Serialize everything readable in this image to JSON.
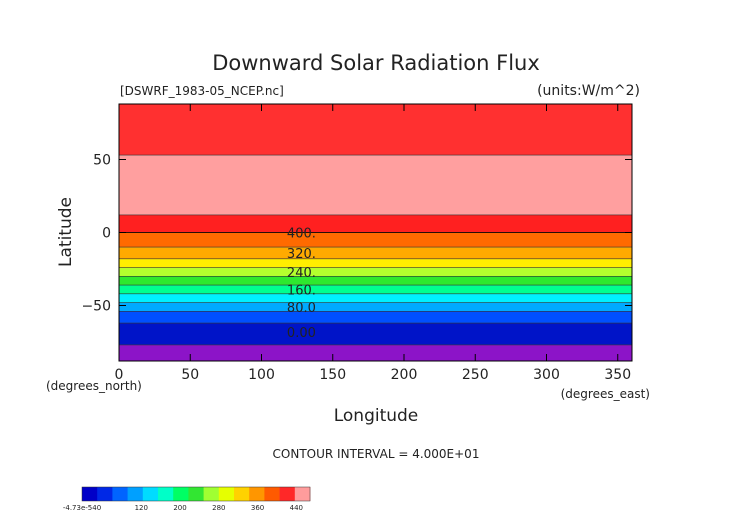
{
  "chart_data": {
    "type": "filled-contour",
    "title": "Downward Solar Radiation Flux",
    "source_label": "[DSWRF_1983-05_NCEP.nc]",
    "units_label": "(units:W/m^2)",
    "xlabel": "Longitude",
    "ylabel": "Latitude",
    "x_unit_label": "(degrees_east)",
    "y_unit_label": "(degrees_north)",
    "xlim": [
      0,
      360
    ],
    "ylim": [
      -90,
      90
    ],
    "x_ticks": [
      {
        "value": 0,
        "label": "0"
      },
      {
        "value": 50,
        "label": "50"
      },
      {
        "value": 100,
        "label": "100"
      },
      {
        "value": 150,
        "label": "150"
      },
      {
        "value": 200,
        "label": "200"
      },
      {
        "value": 250,
        "label": "250"
      },
      {
        "value": 300,
        "label": "300"
      },
      {
        "value": 350,
        "label": "350"
      }
    ],
    "y_ticks": [
      {
        "value": 50,
        "label": "50"
      },
      {
        "value": 0,
        "label": "0"
      },
      {
        "value": -50,
        "label": "−50"
      }
    ],
    "bands": [
      {
        "lat_min": 53,
        "lat_max": 88,
        "color": "#ff3030"
      },
      {
        "lat_min": 12,
        "lat_max": 53,
        "color": "#ff9f9f"
      },
      {
        "lat_min": 0,
        "lat_max": 12,
        "color": "#ff2020"
      },
      {
        "lat_min": -10,
        "lat_max": 0,
        "color": "#ff6a00"
      },
      {
        "lat_min": -18,
        "lat_max": -10,
        "color": "#ffaa00"
      },
      {
        "lat_min": -24,
        "lat_max": -18,
        "color": "#ffee00"
      },
      {
        "lat_min": -30,
        "lat_max": -24,
        "color": "#b4ff2e"
      },
      {
        "lat_min": -36,
        "lat_max": -30,
        "color": "#2ee82e"
      },
      {
        "lat_min": -42,
        "lat_max": -36,
        "color": "#00ff90"
      },
      {
        "lat_min": -48,
        "lat_max": -42,
        "color": "#00f0ff"
      },
      {
        "lat_min": -54,
        "lat_max": -48,
        "color": "#00aaff"
      },
      {
        "lat_min": -62,
        "lat_max": -54,
        "color": "#0050ff"
      },
      {
        "lat_min": -77,
        "lat_max": -62,
        "color": "#0014c8"
      },
      {
        "lat_min": -88,
        "lat_max": -77,
        "color": "#8c14c8"
      }
    ],
    "contour_labels": [
      {
        "value": "400.",
        "lat": 0,
        "lon": 128
      },
      {
        "value": "320.",
        "lat": -14,
        "lon": 128
      },
      {
        "value": "240.",
        "lat": -27,
        "lon": 128
      },
      {
        "value": "160.",
        "lat": -39,
        "lon": 128
      },
      {
        "value": "80.0",
        "lat": -51,
        "lon": 128
      },
      {
        "value": "0.00",
        "lat": -68,
        "lon": 128
      }
    ],
    "contour_interval_label": "CONTOUR INTERVAL = 4.000E+01",
    "colorbar": {
      "colors": [
        "#0000c8",
        "#0028e6",
        "#0064ff",
        "#00a0ff",
        "#00dcff",
        "#00ffc8",
        "#00ff64",
        "#32e632",
        "#a0ff32",
        "#e6ff00",
        "#ffd200",
        "#ff9600",
        "#ff5a00",
        "#ff2828",
        "#ff9c9c"
      ],
      "labels": [
        {
          "text": "-4.73e-540",
          "pos": 0.0
        },
        {
          "text": "120",
          "pos": 0.26
        },
        {
          "text": "200",
          "pos": 0.43
        },
        {
          "text": "280",
          "pos": 0.6
        },
        {
          "text": "360",
          "pos": 0.77
        },
        {
          "text": "440",
          "pos": 0.94
        }
      ]
    }
  }
}
